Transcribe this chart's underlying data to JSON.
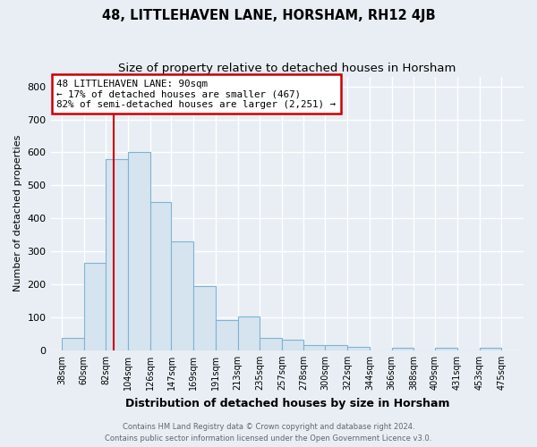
{
  "title": "48, LITTLEHAVEN LANE, HORSHAM, RH12 4JB",
  "subtitle": "Size of property relative to detached houses in Horsham",
  "xlabel": "Distribution of detached houses by size in Horsham",
  "ylabel": "Number of detached properties",
  "footnote1": "Contains HM Land Registry data © Crown copyright and database right 2024.",
  "footnote2": "Contains public sector information licensed under the Open Government Licence v3.0.",
  "bar_left_edges": [
    38,
    60,
    82,
    104,
    126,
    147,
    169,
    191,
    213,
    235,
    257,
    278,
    300,
    322,
    344,
    366,
    388,
    409,
    431,
    453
  ],
  "bar_widths": [
    22,
    22,
    22,
    22,
    21,
    22,
    22,
    22,
    22,
    22,
    21,
    22,
    22,
    22,
    22,
    22,
    21,
    22,
    22,
    22
  ],
  "bar_heights": [
    38,
    265,
    580,
    600,
    450,
    330,
    195,
    92,
    103,
    38,
    33,
    17,
    17,
    10,
    0,
    7,
    0,
    8,
    0,
    8
  ],
  "bar_color": "#d6e4f0",
  "bar_edge_color": "#7fb3d3",
  "red_line_x": 90,
  "red_line_color": "#cc0000",
  "annotation_text": "48 LITTLEHAVEN LANE: 90sqm\n← 17% of detached houses are smaller (467)\n82% of semi-detached houses are larger (2,251) →",
  "annotation_box_color": "#ffffff",
  "annotation_box_edge_color": "#cc0000",
  "xtick_labels": [
    "38sqm",
    "60sqm",
    "82sqm",
    "104sqm",
    "126sqm",
    "147sqm",
    "169sqm",
    "191sqm",
    "213sqm",
    "235sqm",
    "257sqm",
    "278sqm",
    "300sqm",
    "322sqm",
    "344sqm",
    "366sqm",
    "388sqm",
    "409sqm",
    "431sqm",
    "453sqm",
    "475sqm"
  ],
  "xtick_positions": [
    38,
    60,
    82,
    104,
    126,
    147,
    169,
    191,
    213,
    235,
    257,
    278,
    300,
    322,
    344,
    366,
    388,
    409,
    431,
    453,
    475
  ],
  "ylim": [
    0,
    830
  ],
  "xlim": [
    27,
    497
  ],
  "background_color": "#e8eef4",
  "plot_bg_color": "#e8eef4",
  "grid_color": "#ffffff",
  "title_fontsize": 10.5,
  "subtitle_fontsize": 9.5,
  "ylabel_fontsize": 8,
  "xlabel_fontsize": 9
}
